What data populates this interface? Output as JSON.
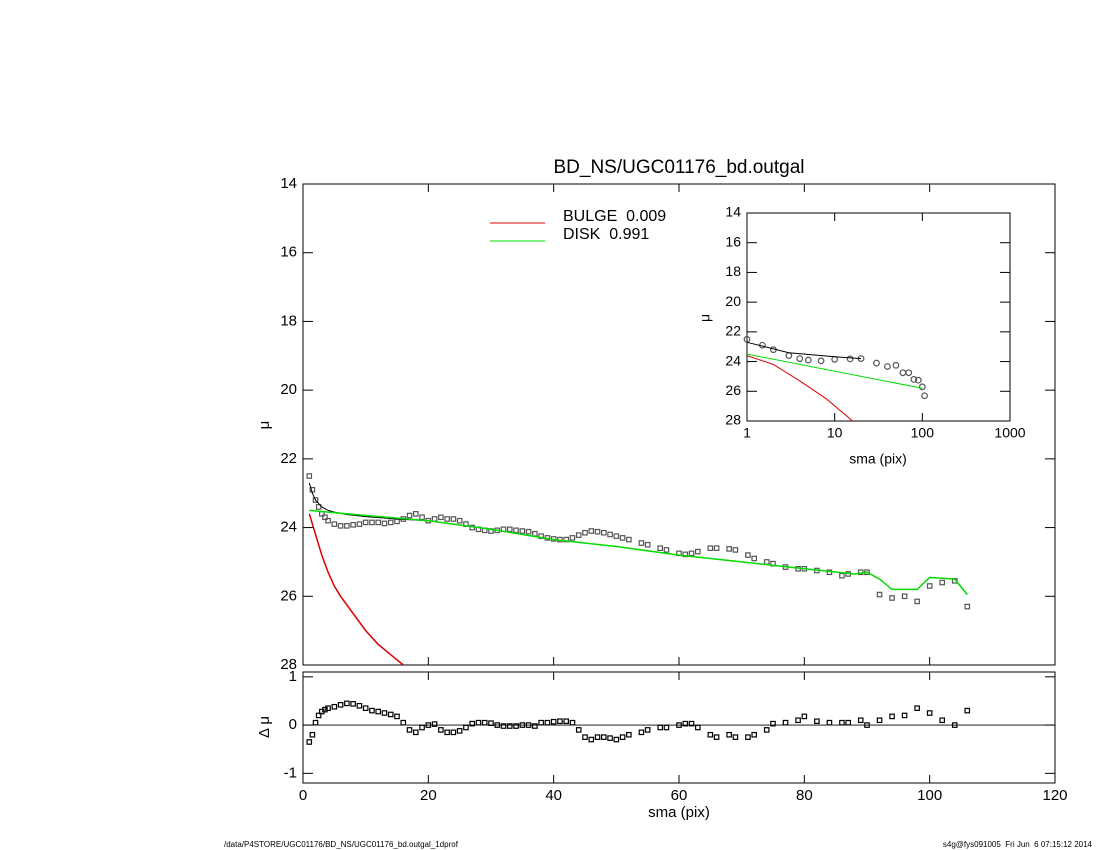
{
  "chart_data": [
    {
      "type": "line",
      "title": "BD_NS/UGC01176_bd.outgal",
      "ylabel": "μ",
      "xlim": [
        0,
        120
      ],
      "xticks": [
        0,
        20,
        40,
        60,
        80,
        100,
        120
      ],
      "ylim": [
        14,
        28
      ],
      "yticks": [
        14,
        16,
        18,
        20,
        22,
        24,
        26,
        28
      ],
      "y_inverted": true,
      "series": [
        {
          "color": "#555555",
          "style": "markers",
          "marker": "square",
          "x": [
            1,
            1.5,
            2,
            2.5,
            3,
            3.5,
            4,
            5,
            6,
            7,
            8,
            9,
            10,
            11,
            12,
            13,
            14,
            15,
            16,
            17,
            18,
            19,
            20,
            21,
            22,
            23,
            24,
            25,
            26,
            27,
            28,
            29,
            30,
            31,
            32,
            33,
            34,
            35,
            36,
            37,
            38,
            39,
            40,
            41,
            42,
            43,
            44,
            45,
            46,
            47,
            48,
            49,
            50,
            51,
            52,
            54,
            55,
            57,
            58,
            60,
            61,
            62,
            63,
            65,
            66,
            68,
            69,
            71,
            72,
            74,
            75,
            77,
            79,
            80,
            82,
            84,
            86,
            87,
            89,
            90,
            92,
            94,
            96,
            98,
            100,
            102,
            104,
            106
          ],
          "values": [
            22.5,
            22.9,
            23.2,
            23.4,
            23.6,
            23.7,
            23.8,
            23.9,
            23.95,
            23.95,
            23.92,
            23.9,
            23.85,
            23.85,
            23.85,
            23.88,
            23.85,
            23.82,
            23.75,
            23.65,
            23.6,
            23.7,
            23.8,
            23.75,
            23.7,
            23.75,
            23.75,
            23.8,
            23.9,
            24.0,
            24.05,
            24.08,
            24.1,
            24.08,
            24.05,
            24.05,
            24.08,
            24.1,
            24.12,
            24.18,
            24.25,
            24.3,
            24.33,
            24.35,
            24.35,
            24.3,
            24.22,
            24.15,
            24.1,
            24.12,
            24.15,
            24.2,
            24.25,
            24.3,
            24.35,
            24.45,
            24.5,
            24.6,
            24.65,
            24.75,
            24.78,
            24.75,
            24.7,
            24.6,
            24.6,
            24.62,
            24.65,
            24.8,
            24.9,
            25.0,
            25.05,
            25.15,
            25.2,
            25.2,
            25.25,
            25.3,
            25.4,
            25.35,
            25.3,
            25.3,
            25.95,
            26.05,
            26.0,
            26.15,
            25.7,
            25.6,
            25.55,
            26.3
          ]
        },
        {
          "color": "#000000",
          "style": "line",
          "width": 1,
          "x": [
            1,
            1.5,
            2,
            3,
            4,
            5,
            7,
            10,
            15,
            20
          ],
          "values": [
            22.7,
            23.0,
            23.2,
            23.4,
            23.5,
            23.55,
            23.62,
            23.68,
            23.75,
            23.8
          ]
        },
        {
          "name": "BULGE  0.009",
          "color": "#dd0000",
          "style": "line",
          "width": 1.5,
          "x": [
            1,
            2,
            3,
            4,
            5,
            6,
            8,
            10,
            12,
            14,
            16
          ],
          "values": [
            23.6,
            24.2,
            24.8,
            25.3,
            25.7,
            26.0,
            26.5,
            27.0,
            27.4,
            27.7,
            28.0
          ]
        },
        {
          "name": "DISK  0.991",
          "color": "#00dd00",
          "style": "line",
          "width": 1.5,
          "x": [
            1,
            10,
            20,
            30,
            40,
            50,
            60,
            70,
            80,
            88,
            90,
            92,
            94,
            98,
            100,
            104,
            106
          ],
          "values": [
            23.5,
            23.65,
            23.8,
            24.05,
            24.35,
            24.55,
            24.8,
            25.0,
            25.2,
            25.35,
            25.3,
            25.5,
            25.8,
            25.8,
            25.45,
            25.5,
            25.95
          ]
        }
      ]
    },
    {
      "type": "line",
      "xlabel": "sma (pix)",
      "ylabel": "Δ μ",
      "xlim": [
        0,
        120
      ],
      "xticks": [
        0,
        20,
        40,
        60,
        80,
        100,
        120
      ],
      "ylim": [
        -1.2,
        1.1
      ],
      "yticks": [
        -1,
        0,
        1
      ],
      "reference_line": 0,
      "series": [
        {
          "color": "#000000",
          "style": "markers",
          "marker": "square",
          "x": [
            1,
            1.5,
            2,
            2.5,
            3,
            3.5,
            4,
            5,
            6,
            7,
            8,
            9,
            10,
            11,
            12,
            13,
            14,
            15,
            16,
            17,
            18,
            19,
            20,
            21,
            22,
            23,
            24,
            25,
            26,
            27,
            28,
            29,
            30,
            31,
            32,
            33,
            34,
            35,
            36,
            37,
            38,
            39,
            40,
            41,
            42,
            43,
            44,
            45,
            46,
            47,
            48,
            49,
            50,
            51,
            52,
            54,
            55,
            57,
            58,
            60,
            61,
            62,
            63,
            65,
            66,
            68,
            69,
            71,
            72,
            74,
            75,
            77,
            79,
            80,
            82,
            84,
            86,
            87,
            89,
            90,
            92,
            94,
            96,
            98,
            100,
            102,
            104,
            106
          ],
          "values": [
            -0.35,
            -0.2,
            0.05,
            0.2,
            0.28,
            0.32,
            0.35,
            0.38,
            0.42,
            0.45,
            0.44,
            0.4,
            0.35,
            0.3,
            0.28,
            0.25,
            0.22,
            0.18,
            0.05,
            -0.1,
            -0.15,
            -0.05,
            0.0,
            0.02,
            -0.1,
            -0.15,
            -0.15,
            -0.12,
            -0.05,
            0.03,
            0.05,
            0.05,
            0.04,
            0.0,
            -0.02,
            -0.02,
            -0.02,
            0.0,
            0.0,
            -0.02,
            0.05,
            0.05,
            0.07,
            0.08,
            0.08,
            0.05,
            -0.1,
            -0.25,
            -0.3,
            -0.25,
            -0.25,
            -0.27,
            -0.3,
            -0.25,
            -0.2,
            -0.15,
            -0.1,
            -0.05,
            -0.05,
            0.0,
            0.03,
            0.03,
            -0.05,
            -0.2,
            -0.25,
            -0.2,
            -0.25,
            -0.25,
            -0.2,
            -0.1,
            0.03,
            0.05,
            0.1,
            0.18,
            0.08,
            0.05,
            0.05,
            0.05,
            0.1,
            0.0,
            0.1,
            0.18,
            0.2,
            0.35,
            0.25,
            0.1,
            0.0,
            0.3
          ]
        }
      ]
    },
    {
      "type": "line",
      "xlabel": "sma (pix)",
      "ylabel": "μ",
      "log_x": true,
      "xlim": [
        1,
        1000
      ],
      "xticks": [
        1,
        10,
        100,
        1000
      ],
      "ylim": [
        14,
        28
      ],
      "yticks": [
        14,
        16,
        18,
        20,
        22,
        24,
        26,
        28
      ],
      "y_inverted": true,
      "series": [
        {
          "color": "#555555",
          "style": "markers",
          "marker": "circle",
          "x": [
            1,
            1.5,
            2,
            3,
            4,
            5,
            7,
            10,
            15,
            20,
            30,
            40,
            50,
            60,
            70,
            80,
            90,
            100,
            106
          ],
          "values": [
            22.5,
            22.9,
            23.2,
            23.6,
            23.8,
            23.9,
            23.95,
            23.85,
            23.82,
            23.8,
            24.1,
            24.33,
            24.25,
            24.75,
            24.75,
            25.2,
            25.25,
            25.7,
            26.3
          ]
        },
        {
          "color": "#000000",
          "style": "line",
          "width": 1,
          "x": [
            1,
            3,
            10,
            20
          ],
          "values": [
            22.7,
            23.4,
            23.68,
            23.8
          ]
        },
        {
          "color": "#dd0000",
          "style": "line",
          "width": 1,
          "x": [
            1,
            2,
            4,
            8,
            16
          ],
          "values": [
            23.6,
            24.2,
            25.3,
            26.5,
            28.0
          ]
        },
        {
          "color": "#00dd00",
          "style": "line",
          "width": 1,
          "x": [
            1,
            100
          ],
          "values": [
            23.5,
            25.8
          ]
        }
      ]
    }
  ],
  "footer_left": "/data/P4STORE/UGC01176/BD_NS/UGC01176_bd.outgal_1dprof",
  "footer_right": "s4g@fys091005  Fri Jun  6 07:15:12 2014"
}
